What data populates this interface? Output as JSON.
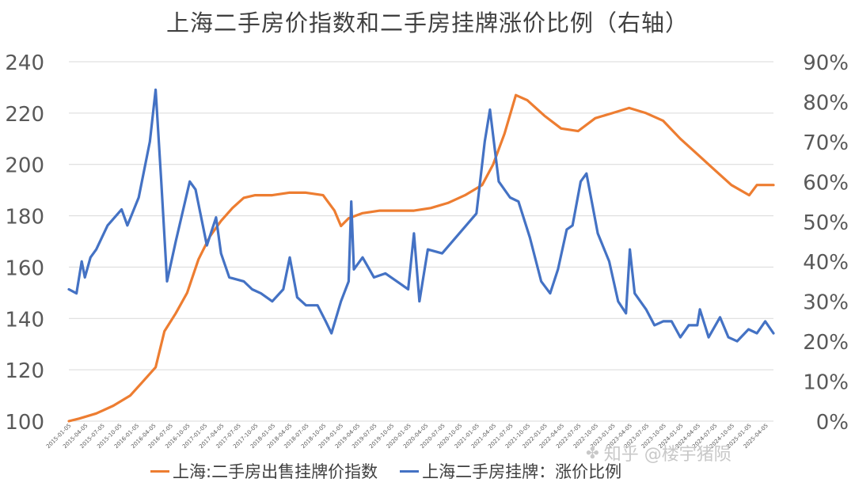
{
  "colors": {
    "orange": "#ed7d31",
    "blue": "#4472c4",
    "grid": "#d9d9d9",
    "text": "#595959"
  },
  "watermark": {
    "text": "知乎 @楼宇猪陨",
    "icon": "bird-logo-icon"
  },
  "chart_data": {
    "type": "line",
    "title": "上海二手房价指数和二手房挂牌涨价比例（右轴）",
    "ylim": [
      100,
      240
    ],
    "y2lim": [
      0,
      0.9
    ],
    "yticks": [
      "100",
      "120",
      "140",
      "160",
      "180",
      "200",
      "220",
      "240"
    ],
    "y2ticks": [
      "0%",
      "10%",
      "20%",
      "30%",
      "40%",
      "50%",
      "60%",
      "70%",
      "80%",
      "90%"
    ],
    "xlabels": [
      "2015-01-05",
      "2015-04-05",
      "2015-07-05",
      "2015-10-05",
      "2016-01-05",
      "2016-04-05",
      "2016-07-05",
      "2016-10-05",
      "2017-01-05",
      "2017-04-05",
      "2017-07-05",
      "2017-10-05",
      "2018-01-05",
      "2018-04-05",
      "2018-07-05",
      "2018-10-05",
      "2019-01-05",
      "2019-04-05",
      "2019-07-05",
      "2019-10-05",
      "2020-01-05",
      "2020-04-05",
      "2020-07-05",
      "2020-10-05",
      "2021-01-05",
      "2021-04-05",
      "2021-07-05",
      "2021-10-05",
      "2022-01-05",
      "2022-04-05",
      "2022-07-05",
      "2022-10-05",
      "2023-01-05",
      "2023-04-05",
      "2023-07-05",
      "2023-10-05",
      "2024-01-05",
      "2024-04-05",
      "2024-07-05",
      "2024-10-05",
      "2025-01-05",
      "2025-04-05"
    ],
    "grid": true,
    "legend_position": "bottom",
    "series": [
      {
        "name": "上海:二手房出售挂牌价指数",
        "axis": "left",
        "color": "#ed7d31",
        "points": [
          [
            "2015-01-05",
            100
          ],
          [
            "2015-03-01",
            101
          ],
          [
            "2015-06-01",
            103
          ],
          [
            "2015-09-01",
            106
          ],
          [
            "2015-12-01",
            110
          ],
          [
            "2016-02-01",
            115
          ],
          [
            "2016-04-15",
            121
          ],
          [
            "2016-06-01",
            135
          ],
          [
            "2016-08-01",
            142
          ],
          [
            "2016-10-01",
            150
          ],
          [
            "2016-12-01",
            163
          ],
          [
            "2017-02-01",
            172
          ],
          [
            "2017-04-01",
            178
          ],
          [
            "2017-06-01",
            183
          ],
          [
            "2017-08-01",
            187
          ],
          [
            "2017-10-01",
            188
          ],
          [
            "2018-01-01",
            188
          ],
          [
            "2018-04-01",
            189
          ],
          [
            "2018-07-01",
            189
          ],
          [
            "2018-10-01",
            188
          ],
          [
            "2018-12-01",
            182
          ],
          [
            "2019-01-05",
            176
          ],
          [
            "2019-02-15",
            179
          ],
          [
            "2019-05-01",
            181
          ],
          [
            "2019-08-01",
            182
          ],
          [
            "2019-11-01",
            182
          ],
          [
            "2020-02-01",
            182
          ],
          [
            "2020-05-01",
            183
          ],
          [
            "2020-08-01",
            185
          ],
          [
            "2020-11-01",
            188
          ],
          [
            "2021-02-01",
            192
          ],
          [
            "2021-04-01",
            200
          ],
          [
            "2021-06-01",
            212
          ],
          [
            "2021-08-01",
            227
          ],
          [
            "2021-10-01",
            225
          ],
          [
            "2022-01-01",
            219
          ],
          [
            "2022-04-01",
            214
          ],
          [
            "2022-07-01",
            213
          ],
          [
            "2022-10-01",
            218
          ],
          [
            "2023-01-01",
            220
          ],
          [
            "2023-04-01",
            222
          ],
          [
            "2023-07-01",
            220
          ],
          [
            "2023-10-01",
            217
          ],
          [
            "2024-01-01",
            210
          ],
          [
            "2024-04-01",
            204
          ],
          [
            "2024-07-01",
            198
          ],
          [
            "2024-10-01",
            192
          ],
          [
            "2025-01-05",
            188
          ],
          [
            "2025-02-15",
            192
          ],
          [
            "2025-05-15",
            192
          ]
        ]
      },
      {
        "name": "上海二手房挂牌：涨价比例",
        "axis": "right",
        "color": "#4472c4",
        "points": [
          [
            "2015-01-05",
            0.33
          ],
          [
            "2015-02-15",
            0.32
          ],
          [
            "2015-03-15",
            0.4
          ],
          [
            "2015-04-01",
            0.36
          ],
          [
            "2015-05-01",
            0.41
          ],
          [
            "2015-06-01",
            0.43
          ],
          [
            "2015-08-01",
            0.49
          ],
          [
            "2015-10-15",
            0.53
          ],
          [
            "2015-11-15",
            0.49
          ],
          [
            "2016-01-15",
            0.56
          ],
          [
            "2016-03-15",
            0.7
          ],
          [
            "2016-04-15",
            0.83
          ],
          [
            "2016-05-15",
            0.6
          ],
          [
            "2016-06-15",
            0.35
          ],
          [
            "2016-08-01",
            0.45
          ],
          [
            "2016-10-15",
            0.6
          ],
          [
            "2016-11-15",
            0.58
          ],
          [
            "2017-01-15",
            0.44
          ],
          [
            "2017-03-05",
            0.51
          ],
          [
            "2017-04-01",
            0.42
          ],
          [
            "2017-05-15",
            0.36
          ],
          [
            "2017-08-01",
            0.35
          ],
          [
            "2017-09-15",
            0.33
          ],
          [
            "2017-11-01",
            0.32
          ],
          [
            "2018-01-01",
            0.3
          ],
          [
            "2018-03-01",
            0.33
          ],
          [
            "2018-04-05",
            0.41
          ],
          [
            "2018-05-15",
            0.31
          ],
          [
            "2018-07-01",
            0.29
          ],
          [
            "2018-09-01",
            0.29
          ],
          [
            "2018-10-15",
            0.25
          ],
          [
            "2018-11-15",
            0.22
          ],
          [
            "2019-01-05",
            0.3
          ],
          [
            "2019-02-15",
            0.35
          ],
          [
            "2019-03-01",
            0.55
          ],
          [
            "2019-03-15",
            0.38
          ],
          [
            "2019-05-01",
            0.41
          ],
          [
            "2019-07-01",
            0.36
          ],
          [
            "2019-09-01",
            0.37
          ],
          [
            "2019-11-01",
            0.35
          ],
          [
            "2020-01-01",
            0.33
          ],
          [
            "2020-02-01",
            0.47
          ],
          [
            "2020-03-01",
            0.3
          ],
          [
            "2020-04-15",
            0.43
          ],
          [
            "2020-07-01",
            0.42
          ],
          [
            "2020-10-01",
            0.47
          ],
          [
            "2021-01-01",
            0.52
          ],
          [
            "2021-02-15",
            0.7
          ],
          [
            "2021-03-15",
            0.78
          ],
          [
            "2021-05-01",
            0.6
          ],
          [
            "2021-07-01",
            0.56
          ],
          [
            "2021-08-15",
            0.55
          ],
          [
            "2021-10-15",
            0.46
          ],
          [
            "2021-12-15",
            0.35
          ],
          [
            "2022-02-01",
            0.32
          ],
          [
            "2022-03-15",
            0.38
          ],
          [
            "2022-05-01",
            0.48
          ],
          [
            "2022-06-01",
            0.49
          ],
          [
            "2022-07-15",
            0.6
          ],
          [
            "2022-08-15",
            0.62
          ],
          [
            "2022-10-15",
            0.47
          ],
          [
            "2022-12-15",
            0.4
          ],
          [
            "2023-02-01",
            0.3
          ],
          [
            "2023-03-15",
            0.27
          ],
          [
            "2023-04-05",
            0.43
          ],
          [
            "2023-05-01",
            0.32
          ],
          [
            "2023-07-01",
            0.28
          ],
          [
            "2023-08-15",
            0.24
          ],
          [
            "2023-10-01",
            0.25
          ],
          [
            "2023-11-15",
            0.25
          ],
          [
            "2024-01-01",
            0.21
          ],
          [
            "2024-02-15",
            0.24
          ],
          [
            "2024-04-01",
            0.24
          ],
          [
            "2024-04-15",
            0.28
          ],
          [
            "2024-06-01",
            0.21
          ],
          [
            "2024-08-01",
            0.26
          ],
          [
            "2024-09-15",
            0.21
          ],
          [
            "2024-11-01",
            0.2
          ],
          [
            "2025-01-01",
            0.23
          ],
          [
            "2025-02-15",
            0.22
          ],
          [
            "2025-04-01",
            0.25
          ],
          [
            "2025-05-15",
            0.22
          ]
        ]
      }
    ]
  }
}
